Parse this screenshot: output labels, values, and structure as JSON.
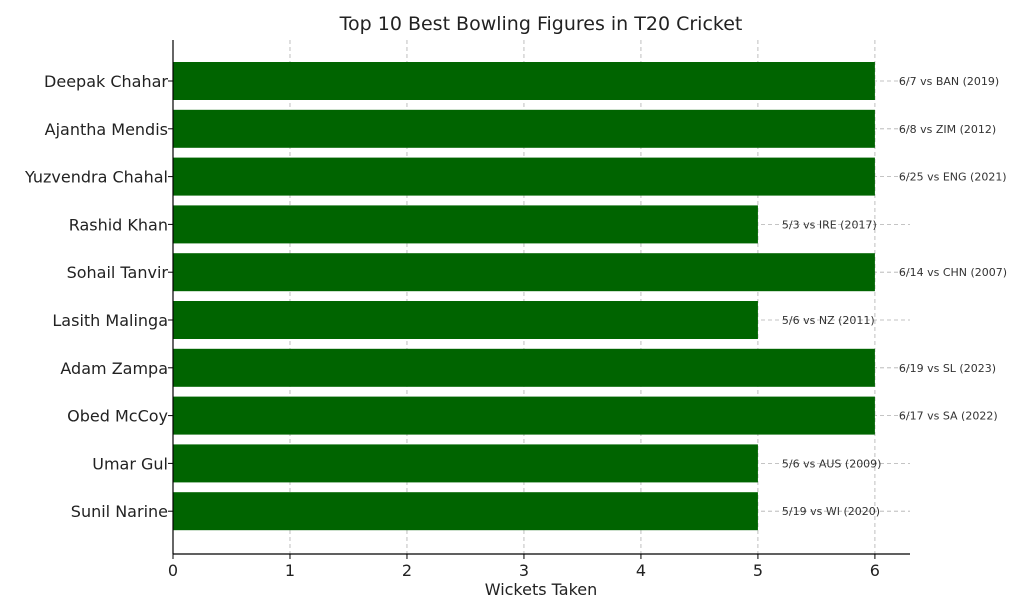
{
  "chart_data": {
    "type": "bar",
    "orientation": "horizontal",
    "title": "Top 10 Best Bowling Figures in T20 Cricket",
    "xlabel": "Wickets Taken",
    "ylabel": "",
    "xlim": [
      0,
      6.3
    ],
    "xticks": [
      "0",
      "1",
      "2",
      "3",
      "4",
      "5",
      "6"
    ],
    "grid": true,
    "bar_color": "#006400",
    "categories": [
      "Deepak Chahar",
      "Ajantha Mendis",
      "Yuzvendra Chahal",
      "Rashid Khan",
      "Sohail Tanvir",
      "Lasith Malinga",
      "Adam Zampa",
      "Obed McCoy",
      "Umar Gul",
      "Sunil Narine"
    ],
    "values": [
      6,
      6,
      6,
      5,
      6,
      5,
      6,
      6,
      5,
      5
    ],
    "annotations": [
      "6/7 vs BAN (2019)",
      "6/8 vs ZIM (2012)",
      "6/25 vs ENG (2021)",
      "5/3 vs IRE (2017)",
      "6/14 vs CHN (2007)",
      "5/6 vs NZ (2011)",
      "6/19 vs SL (2023)",
      "6/17 vs SA (2022)",
      "5/6 vs AUS (2009)",
      "5/19 vs WI (2020)"
    ]
  }
}
